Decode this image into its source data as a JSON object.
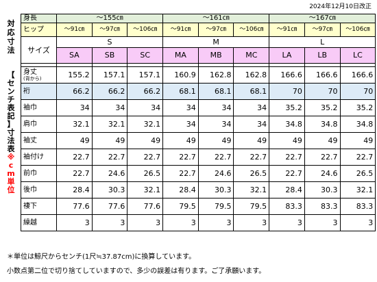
{
  "date_note": "2024年12月10日改正",
  "side_label_top": [
    "対",
    "応",
    "寸",
    "法"
  ],
  "side_label_bottom": [
    "【",
    "セ",
    "ン",
    "チ",
    "表",
    "記",
    "】",
    "寸",
    "法",
    "表"
  ],
  "side_label_bottom_red": [
    "※",
    "c",
    "m",
    "単",
    "位"
  ],
  "header": {
    "height_label": "身長",
    "hip_label": "ヒップ",
    "size_label": "サイズ",
    "groups": [
      {
        "height": "～155㎝",
        "letter": "S",
        "hips": [
          "～91㎝",
          "～97㎝",
          "～106㎝"
        ],
        "codes": [
          "SA",
          "SB",
          "SC"
        ]
      },
      {
        "height": "～161㎝",
        "letter": "M",
        "hips": [
          "～91㎝",
          "～97㎝",
          "～106㎝"
        ],
        "codes": [
          "MA",
          "MB",
          "MC"
        ]
      },
      {
        "height": "～167㎝",
        "letter": "L",
        "hips": [
          "～91㎝",
          "～97㎝",
          "～106㎝"
        ],
        "codes": [
          "LA",
          "LB",
          "LC"
        ]
      }
    ]
  },
  "rows": [
    {
      "label": "身丈",
      "sub": "(背から)",
      "values": [
        "155.2",
        "157.1",
        "157.1",
        "160.9",
        "162.8",
        "162.8",
        "166.6",
        "166.6",
        "166.6"
      ]
    },
    {
      "label": "裄",
      "values": [
        "66.2",
        "66.2",
        "66.2",
        "68.1",
        "68.1",
        "68.1",
        "70",
        "70",
        "70"
      ],
      "highlight": true
    },
    {
      "label": "袖巾",
      "values": [
        "34",
        "34",
        "34",
        "34",
        "34",
        "34",
        "35.2",
        "35.2",
        "35.2"
      ]
    },
    {
      "label": "肩巾",
      "values": [
        "32.1",
        "32.1",
        "32.1",
        "34",
        "34",
        "34",
        "34.8",
        "34.8",
        "34.8"
      ]
    },
    {
      "label": "袖丈",
      "values": [
        "49",
        "49",
        "49",
        "49",
        "49",
        "49",
        "49",
        "49",
        "49"
      ]
    },
    {
      "label": "袖付け",
      "values": [
        "22.7",
        "22.7",
        "22.7",
        "22.7",
        "22.7",
        "22.7",
        "22.7",
        "22.7",
        "22.7"
      ]
    },
    {
      "label": "前巾",
      "values": [
        "22.7",
        "24.6",
        "26.5",
        "22.7",
        "24.6",
        "26.5",
        "22.7",
        "24.6",
        "26.5"
      ]
    },
    {
      "label": "後巾",
      "values": [
        "28.4",
        "30.3",
        "32.1",
        "28.4",
        "30.3",
        "32.1",
        "28.4",
        "30.3",
        "32.1"
      ]
    },
    {
      "label": "褄下",
      "values": [
        "77.6",
        "77.6",
        "77.6",
        "79.5",
        "79.5",
        "79.5",
        "83.3",
        "83.3",
        "83.3"
      ]
    },
    {
      "label": "繰越",
      "values": [
        "3",
        "3",
        "3",
        "3",
        "3",
        "3",
        "3",
        "3",
        "3"
      ]
    }
  ],
  "footnotes": [
    "＊単位は鯨尺からセンチ(1尺≒37.87cm)に換算しています。",
    "小数点第二位で切り捨てしていますので、多少の誤差は有ります。ご了承願います。"
  ],
  "colors": {
    "group_header": "#e2efda",
    "hip_header": "#ffffcc",
    "code_header": "#f8cbf7",
    "highlight_row": "#ddebf7",
    "red_note": "#ff0000"
  }
}
